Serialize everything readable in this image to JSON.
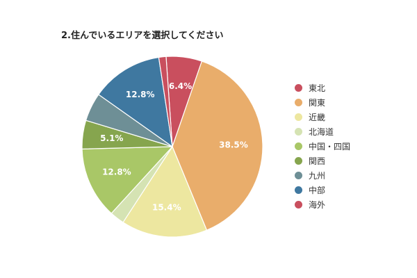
{
  "chart_data": {
    "type": "pie",
    "title": "2.住んでいるエリアを選択してください",
    "categories": [
      "東北",
      "関東",
      "近畿",
      "北海道",
      "中国・四国",
      "関西",
      "九州",
      "中部",
      "海外"
    ],
    "values": [
      6.4,
      38.5,
      15.4,
      2.6,
      12.8,
      5.1,
      5.1,
      12.8,
      1.3
    ],
    "data_labels": [
      "6.4%",
      "38.5%",
      "15.4%",
      "",
      "12.8%",
      "5.1%",
      "",
      "12.8%",
      ""
    ],
    "colors": [
      "#c94f5e",
      "#e9ad6b",
      "#ede7a0",
      "#d5e3b3",
      "#a9c767",
      "#86a54e",
      "#6e8f96",
      "#3f78a0",
      "#c94f5e"
    ],
    "legend_position": "right",
    "start_angle_deg": -4
  }
}
